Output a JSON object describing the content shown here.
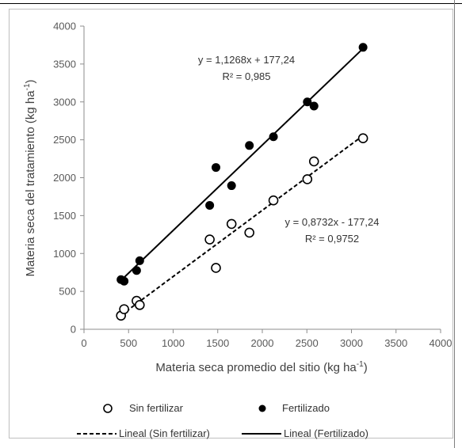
{
  "chart_data": {
    "type": "scatter",
    "xlabel": "Materia seca promedio del sitio (kg ha",
    "xlabel_sup": "-1",
    "xlabel_end": ")",
    "ylabel": "Materia seca del tratamiento (kg ha",
    "ylabel_sup": "-1",
    "ylabel_end": ")",
    "xlim": [
      0,
      4000
    ],
    "ylim": [
      0,
      4000
    ],
    "xticks": [
      0,
      500,
      1000,
      1500,
      2000,
      2500,
      3000,
      3500,
      4000
    ],
    "yticks": [
      0,
      500,
      1000,
      1500,
      2000,
      2500,
      3000,
      3500,
      4000
    ],
    "grid": false,
    "legend_position": "bottom",
    "series": [
      {
        "name": "Sin fertilizar",
        "marker": "open-circle",
        "color": "#000000",
        "x": [
          415,
          450,
          590,
          625,
          1410,
          1480,
          1655,
          1855,
          2125,
          2505,
          2580,
          3130
        ],
        "y": [
          180,
          265,
          375,
          320,
          1185,
          810,
          1390,
          1275,
          1700,
          1980,
          2215,
          2520
        ]
      },
      {
        "name": "Fertilizado",
        "marker": "filled-circle",
        "color": "#000000",
        "x": [
          415,
          450,
          590,
          625,
          1410,
          1480,
          1655,
          1855,
          2125,
          2505,
          2580,
          3130
        ],
        "y": [
          655,
          635,
          775,
          905,
          1635,
          2135,
          1895,
          2425,
          2540,
          3000,
          2945,
          3720
        ]
      }
    ],
    "trendlines": [
      {
        "name": "Lineal (Sin fertilizar)",
        "style": "dashed",
        "slope": 0.8732,
        "intercept": -177.24,
        "x_range": [
          415,
          3130
        ],
        "equation": "y = 0,8732x - 177,24",
        "r2": "R² = 0,9752"
      },
      {
        "name": "Lineal (Fertilizado)",
        "style": "solid",
        "slope": 1.1268,
        "intercept": 177.24,
        "x_range": [
          415,
          3130
        ],
        "equation": "y = 1,1268x + 177,24",
        "r2": "R² = 0,985"
      }
    ]
  }
}
